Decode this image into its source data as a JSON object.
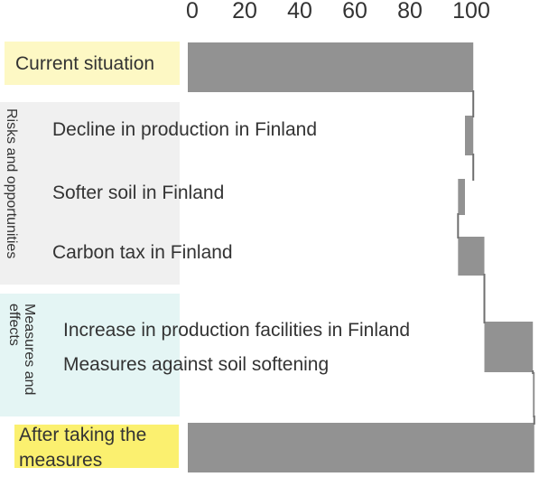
{
  "chart_data": {
    "type": "bar",
    "subtype": "waterfall",
    "axis_ticks": [
      "0",
      "20",
      "40",
      "60",
      "80",
      "100"
    ],
    "xlim": [
      0,
      126
    ],
    "grid": false,
    "bar_color": "#929292",
    "groups": {
      "risks": "Risks and opportunities",
      "measures": "Measures and effects"
    },
    "rows": [
      {
        "label": "Current situation",
        "start": 0,
        "end": 103
      },
      {
        "label": "Decline in production in Finland",
        "start": 100,
        "end": 103
      },
      {
        "label": "Softer soil in Finland",
        "start": 97.5,
        "end": 100
      },
      {
        "label": "Carbon tax in Finland",
        "start": 97.5,
        "end": 107
      },
      {
        "label": "Increase in production facilities in Finland",
        "start": 107,
        "end": 124.5
      },
      {
        "label": "Measures against soil softening",
        "start": 124.5,
        "end": 125
      },
      {
        "label": "After taking the measures",
        "start": 0,
        "end": 125
      }
    ]
  },
  "labels": {
    "current": "Current situation",
    "decline": "Decline in production in Finland",
    "softer": "Softer soil in Finland",
    "carbon": "Carbon tax in Finland",
    "increase": "Increase in production facilities in Finland",
    "measures_soil": "Measures against soil softening",
    "after_line1": "After taking the",
    "after_line2": "measures"
  },
  "colors": {
    "highlight_yellow": "#fdf8c4",
    "strong_yellow": "#fbf06f",
    "risk_panel": "#f0f0f0",
    "measure_panel": "#e4f5f4",
    "bar": "#929292"
  }
}
